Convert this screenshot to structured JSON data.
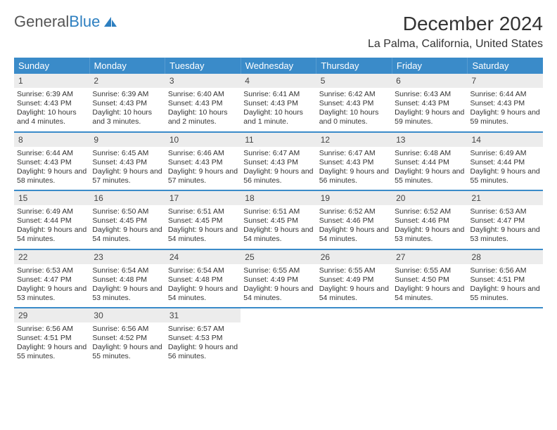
{
  "logo": {
    "text1": "General",
    "text2": "Blue"
  },
  "title": "December 2024",
  "location": "La Palma, California, United States",
  "dayHeaders": [
    "Sunday",
    "Monday",
    "Tuesday",
    "Wednesday",
    "Thursday",
    "Friday",
    "Saturday"
  ],
  "colors": {
    "headerBg": "#3a8bc9",
    "headerText": "#ffffff",
    "dayNumBg": "#ececec",
    "weekBorder": "#3a8bc9",
    "logoBlue": "#2d7fc0",
    "bodyText": "#333333",
    "background": "#ffffff"
  },
  "typography": {
    "titleFontSize": 28,
    "locationFontSize": 16,
    "dayHeaderFontSize": 13,
    "dayNumFontSize": 12,
    "cellFontSize": 10.5
  },
  "weeks": [
    [
      {
        "num": "1",
        "sunrise": "Sunrise: 6:39 AM",
        "sunset": "Sunset: 4:43 PM",
        "daylight": "Daylight: 10 hours and 4 minutes."
      },
      {
        "num": "2",
        "sunrise": "Sunrise: 6:39 AM",
        "sunset": "Sunset: 4:43 PM",
        "daylight": "Daylight: 10 hours and 3 minutes."
      },
      {
        "num": "3",
        "sunrise": "Sunrise: 6:40 AM",
        "sunset": "Sunset: 4:43 PM",
        "daylight": "Daylight: 10 hours and 2 minutes."
      },
      {
        "num": "4",
        "sunrise": "Sunrise: 6:41 AM",
        "sunset": "Sunset: 4:43 PM",
        "daylight": "Daylight: 10 hours and 1 minute."
      },
      {
        "num": "5",
        "sunrise": "Sunrise: 6:42 AM",
        "sunset": "Sunset: 4:43 PM",
        "daylight": "Daylight: 10 hours and 0 minutes."
      },
      {
        "num": "6",
        "sunrise": "Sunrise: 6:43 AM",
        "sunset": "Sunset: 4:43 PM",
        "daylight": "Daylight: 9 hours and 59 minutes."
      },
      {
        "num": "7",
        "sunrise": "Sunrise: 6:44 AM",
        "sunset": "Sunset: 4:43 PM",
        "daylight": "Daylight: 9 hours and 59 minutes."
      }
    ],
    [
      {
        "num": "8",
        "sunrise": "Sunrise: 6:44 AM",
        "sunset": "Sunset: 4:43 PM",
        "daylight": "Daylight: 9 hours and 58 minutes."
      },
      {
        "num": "9",
        "sunrise": "Sunrise: 6:45 AM",
        "sunset": "Sunset: 4:43 PM",
        "daylight": "Daylight: 9 hours and 57 minutes."
      },
      {
        "num": "10",
        "sunrise": "Sunrise: 6:46 AM",
        "sunset": "Sunset: 4:43 PM",
        "daylight": "Daylight: 9 hours and 57 minutes."
      },
      {
        "num": "11",
        "sunrise": "Sunrise: 6:47 AM",
        "sunset": "Sunset: 4:43 PM",
        "daylight": "Daylight: 9 hours and 56 minutes."
      },
      {
        "num": "12",
        "sunrise": "Sunrise: 6:47 AM",
        "sunset": "Sunset: 4:43 PM",
        "daylight": "Daylight: 9 hours and 56 minutes."
      },
      {
        "num": "13",
        "sunrise": "Sunrise: 6:48 AM",
        "sunset": "Sunset: 4:44 PM",
        "daylight": "Daylight: 9 hours and 55 minutes."
      },
      {
        "num": "14",
        "sunrise": "Sunrise: 6:49 AM",
        "sunset": "Sunset: 4:44 PM",
        "daylight": "Daylight: 9 hours and 55 minutes."
      }
    ],
    [
      {
        "num": "15",
        "sunrise": "Sunrise: 6:49 AM",
        "sunset": "Sunset: 4:44 PM",
        "daylight": "Daylight: 9 hours and 54 minutes."
      },
      {
        "num": "16",
        "sunrise": "Sunrise: 6:50 AM",
        "sunset": "Sunset: 4:45 PM",
        "daylight": "Daylight: 9 hours and 54 minutes."
      },
      {
        "num": "17",
        "sunrise": "Sunrise: 6:51 AM",
        "sunset": "Sunset: 4:45 PM",
        "daylight": "Daylight: 9 hours and 54 minutes."
      },
      {
        "num": "18",
        "sunrise": "Sunrise: 6:51 AM",
        "sunset": "Sunset: 4:45 PM",
        "daylight": "Daylight: 9 hours and 54 minutes."
      },
      {
        "num": "19",
        "sunrise": "Sunrise: 6:52 AM",
        "sunset": "Sunset: 4:46 PM",
        "daylight": "Daylight: 9 hours and 54 minutes."
      },
      {
        "num": "20",
        "sunrise": "Sunrise: 6:52 AM",
        "sunset": "Sunset: 4:46 PM",
        "daylight": "Daylight: 9 hours and 53 minutes."
      },
      {
        "num": "21",
        "sunrise": "Sunrise: 6:53 AM",
        "sunset": "Sunset: 4:47 PM",
        "daylight": "Daylight: 9 hours and 53 minutes."
      }
    ],
    [
      {
        "num": "22",
        "sunrise": "Sunrise: 6:53 AM",
        "sunset": "Sunset: 4:47 PM",
        "daylight": "Daylight: 9 hours and 53 minutes."
      },
      {
        "num": "23",
        "sunrise": "Sunrise: 6:54 AM",
        "sunset": "Sunset: 4:48 PM",
        "daylight": "Daylight: 9 hours and 53 minutes."
      },
      {
        "num": "24",
        "sunrise": "Sunrise: 6:54 AM",
        "sunset": "Sunset: 4:48 PM",
        "daylight": "Daylight: 9 hours and 54 minutes."
      },
      {
        "num": "25",
        "sunrise": "Sunrise: 6:55 AM",
        "sunset": "Sunset: 4:49 PM",
        "daylight": "Daylight: 9 hours and 54 minutes."
      },
      {
        "num": "26",
        "sunrise": "Sunrise: 6:55 AM",
        "sunset": "Sunset: 4:49 PM",
        "daylight": "Daylight: 9 hours and 54 minutes."
      },
      {
        "num": "27",
        "sunrise": "Sunrise: 6:55 AM",
        "sunset": "Sunset: 4:50 PM",
        "daylight": "Daylight: 9 hours and 54 minutes."
      },
      {
        "num": "28",
        "sunrise": "Sunrise: 6:56 AM",
        "sunset": "Sunset: 4:51 PM",
        "daylight": "Daylight: 9 hours and 55 minutes."
      }
    ],
    [
      {
        "num": "29",
        "sunrise": "Sunrise: 6:56 AM",
        "sunset": "Sunset: 4:51 PM",
        "daylight": "Daylight: 9 hours and 55 minutes."
      },
      {
        "num": "30",
        "sunrise": "Sunrise: 6:56 AM",
        "sunset": "Sunset: 4:52 PM",
        "daylight": "Daylight: 9 hours and 55 minutes."
      },
      {
        "num": "31",
        "sunrise": "Sunrise: 6:57 AM",
        "sunset": "Sunset: 4:53 PM",
        "daylight": "Daylight: 9 hours and 56 minutes."
      },
      null,
      null,
      null,
      null
    ]
  ]
}
